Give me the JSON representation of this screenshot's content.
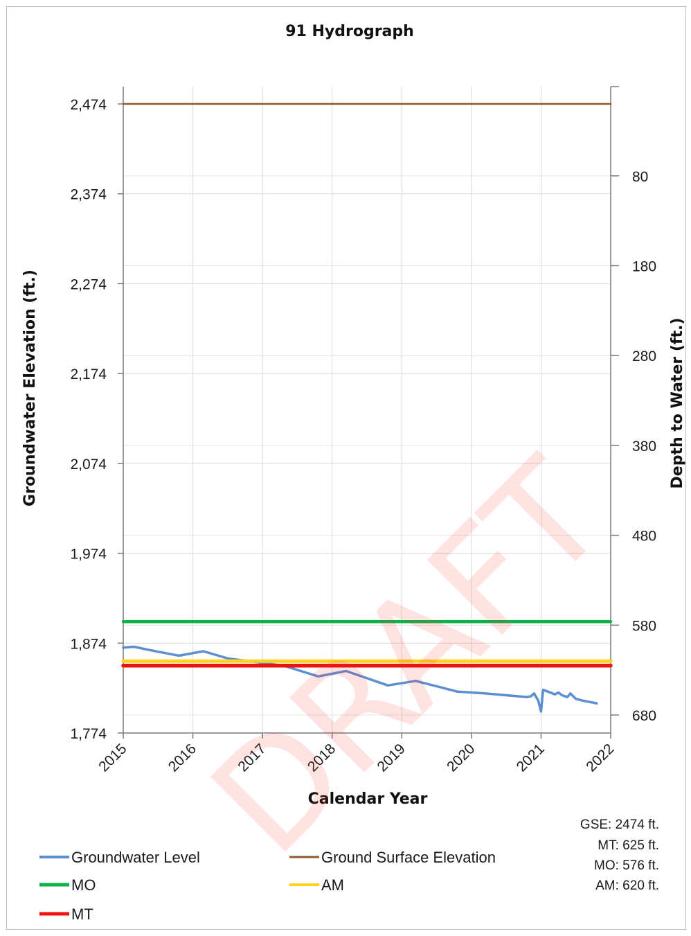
{
  "chart_data": {
    "type": "line",
    "title": "91 Hydrograph",
    "xlabel": "Calendar Year",
    "ylabel_left": "Groundwater Elevation (ft.)",
    "ylabel_right": "Depth to Water (ft.)",
    "x_ticks": [
      "2015",
      "2016",
      "2017",
      "2018",
      "2019",
      "2020",
      "2021",
      "2022"
    ],
    "xlim": [
      2015,
      2022
    ],
    "y_left_ticks": [
      "2,474",
      "2,374",
      "2,274",
      "2,174",
      "2,074",
      "1,974",
      "1,874",
      "1,774"
    ],
    "ylim_left": [
      1774,
      2474
    ],
    "y_right_ticks": [
      "80",
      "180",
      "280",
      "380",
      "480",
      "580",
      "680"
    ],
    "right_axis_inverted": true,
    "grid": true,
    "legend_position": "bottom",
    "series": [
      {
        "name": "Groundwater Level",
        "color": "#5b8fd1",
        "x": [
          2015.0,
          2015.15,
          2015.4,
          2015.8,
          2016.15,
          2016.5,
          2016.9,
          2017.3,
          2017.55,
          2017.8,
          2018.2,
          2018.5,
          2018.8,
          2019.2,
          2019.55,
          2019.8,
          2020.2,
          2020.5,
          2020.8,
          2020.86,
          2020.9,
          2020.96,
          2021.0,
          2021.03,
          2021.1,
          2021.2,
          2021.25,
          2021.3,
          2021.38,
          2021.42,
          2021.5,
          2021.6,
          2021.8
        ],
        "y": [
          1869,
          1870,
          1866,
          1860,
          1865,
          1857,
          1853,
          1849,
          1843,
          1837,
          1843,
          1835,
          1827,
          1832,
          1825,
          1820,
          1818,
          1816,
          1814,
          1815,
          1818,
          1810,
          1798,
          1822,
          1820,
          1817,
          1819,
          1816,
          1814,
          1818,
          1812,
          1810,
          1807
        ]
      },
      {
        "name": "Ground Surface Elevation",
        "color": "#8b5a2b",
        "x": [
          2015,
          2022
        ],
        "y": [
          2474,
          2474
        ]
      },
      {
        "name": "MO",
        "color": "#12b04a",
        "x": [
          2015,
          2022
        ],
        "y": [
          1898,
          1898
        ]
      },
      {
        "name": "AM",
        "color": "#ffd21f",
        "x": [
          2015,
          2022
        ],
        "y": [
          1854,
          1854
        ]
      },
      {
        "name": "MT",
        "color": "#ee1111",
        "x": [
          2015,
          2022
        ],
        "y": [
          1849,
          1849
        ]
      }
    ],
    "annotations": [
      "GSE: 2474 ft.",
      "MT: 625 ft.",
      "MO: 576 ft.",
      "AM: 620 ft."
    ],
    "watermark": "DRAFT"
  }
}
